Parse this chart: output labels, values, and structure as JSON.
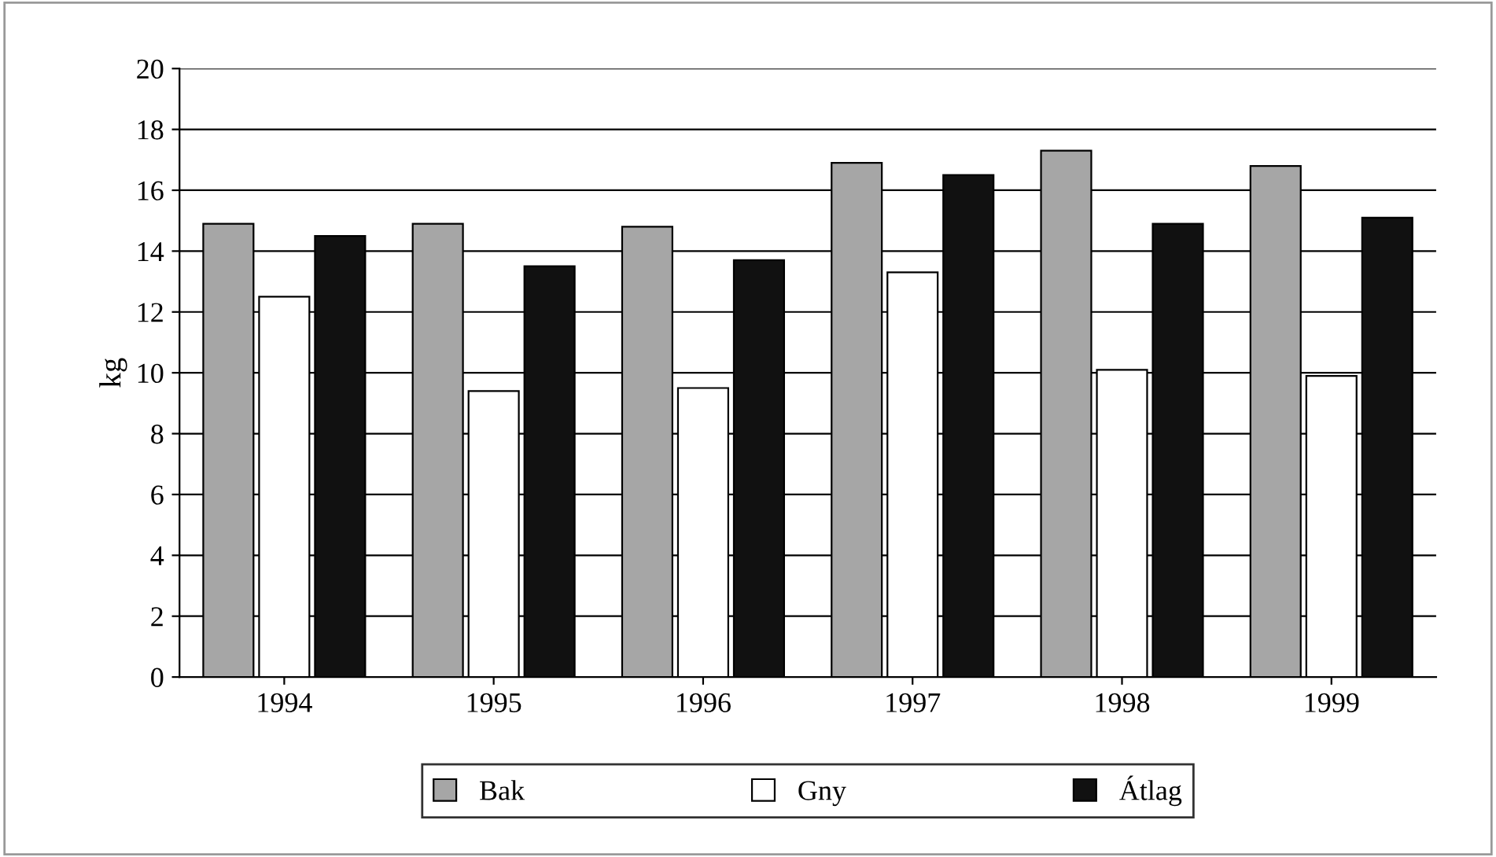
{
  "chart_data": {
    "type": "bar",
    "ylabel": "kg",
    "categories": [
      "1994",
      "1995",
      "1996",
      "1997",
      "1998",
      "1999"
    ],
    "series": [
      {
        "name": "Bak",
        "color": "#a6a6a6",
        "values": [
          14.9,
          14.9,
          14.8,
          16.9,
          17.3,
          16.8
        ]
      },
      {
        "name": "Gny",
        "color": "#ffffff",
        "values": [
          12.5,
          9.4,
          9.5,
          13.3,
          10.1,
          9.9
        ]
      },
      {
        "name": "Átlag",
        "color": "#111111",
        "values": [
          14.5,
          13.5,
          13.7,
          16.5,
          14.9,
          15.1
        ]
      }
    ],
    "ylim": [
      0,
      20
    ],
    "yticks": [
      0,
      2,
      4,
      6,
      8,
      10,
      12,
      14,
      16,
      18,
      20
    ],
    "grid": "y",
    "legend": "bottom"
  }
}
